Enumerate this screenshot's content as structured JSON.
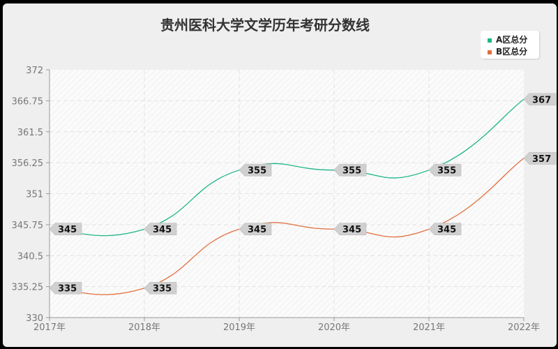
{
  "title": "贵州医科大学文学历年考研分数线",
  "legend": [
    {
      "label": "A区总分",
      "color": "#1fb58a"
    },
    {
      "label": "B区总分",
      "color": "#e0703f"
    }
  ],
  "chart_data": {
    "type": "line",
    "title": "贵州医科大学文学历年考研分数线",
    "xlabel": "",
    "ylabel": "",
    "categories": [
      "2017年",
      "2018年",
      "2019年",
      "2020年",
      "2021年",
      "2022年"
    ],
    "series": [
      {
        "name": "A区总分",
        "color": "#1fb58a",
        "values": [
          345,
          345,
          355,
          355,
          355,
          367
        ]
      },
      {
        "name": "B区总分",
        "color": "#e0703f",
        "values": [
          335,
          335,
          345,
          345,
          345,
          357
        ]
      }
    ],
    "ylim": [
      330,
      372
    ],
    "yticks": [
      "372",
      "366.75",
      "361.5",
      "356.25",
      "351",
      "345.75",
      "340.5",
      "335.25",
      "330"
    ],
    "grid": true,
    "smooth": true,
    "legend_position": "top-right"
  }
}
